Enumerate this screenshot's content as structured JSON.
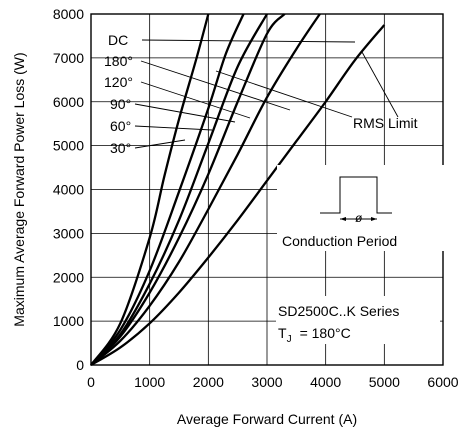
{
  "chart_data": {
    "type": "line",
    "title": "",
    "xlabel": "Average Forward Current (A)",
    "ylabel": "Maximum Average Forward Power Loss (W)",
    "xlim": [
      0,
      6000
    ],
    "ylim": [
      0,
      8000
    ],
    "xticks": [
      "0",
      "1000",
      "2000",
      "3000",
      "4000",
      "5000",
      "6000"
    ],
    "yticks": [
      "0",
      "1000",
      "2000",
      "3000",
      "4000",
      "5000",
      "6000",
      "7000",
      "8000"
    ],
    "grid": true,
    "series": [
      {
        "name": "30°",
        "x": [
          0,
          500,
          1000,
          1250,
          1500,
          1800,
          2000
        ],
        "y": [
          0,
          950,
          2900,
          4300,
          5600,
          7000,
          8000
        ]
      },
      {
        "name": "60°",
        "x": [
          0,
          500,
          1000,
          1500,
          2000,
          2300,
          2600
        ],
        "y": [
          0,
          800,
          2150,
          3950,
          5850,
          7100,
          8000
        ]
      },
      {
        "name": "90°",
        "x": [
          0,
          500,
          1000,
          1500,
          2000,
          2500,
          3000
        ],
        "y": [
          0,
          700,
          1850,
          3300,
          5050,
          6800,
          8000
        ]
      },
      {
        "name": "120°",
        "x": [
          0,
          500,
          1000,
          1500,
          2000,
          2500,
          3000,
          3300
        ],
        "y": [
          0,
          650,
          1650,
          2900,
          4350,
          6000,
          7550,
          8000
        ]
      },
      {
        "name": "180°",
        "x": [
          0,
          500,
          1000,
          1500,
          2000,
          2500,
          3000,
          3500,
          3900
        ],
        "y": [
          0,
          550,
          1350,
          2350,
          3550,
          4800,
          6100,
          7200,
          8000
        ]
      },
      {
        "name": "DC",
        "x": [
          0,
          500,
          1000,
          1500,
          2000,
          2500,
          3000,
          3500,
          4000,
          4500,
          5000
        ],
        "y": [
          0,
          400,
          950,
          1650,
          2450,
          3300,
          4200,
          5100,
          6000,
          6950,
          7750
        ]
      }
    ],
    "rms_limit_points": [
      [
        1800,
        7000
      ],
      [
        2300,
        7100
      ],
      [
        2500,
        6800
      ],
      [
        2800,
        7200
      ],
      [
        3000,
        7550
      ],
      [
        4500,
        6950
      ],
      [
        5000,
        7750
      ]
    ],
    "rms_limit_label": "RMS Limit",
    "legend_labels": [
      "DC",
      "180°",
      "120°",
      "90°",
      "60°",
      "30°"
    ],
    "inset_label": "Conduction Period",
    "inset_symbol": "ø",
    "series_note_line1": "SD2500C..K Series",
    "series_note_line2_prefix": "T",
    "series_note_line2_sub": "J",
    "series_note_line2_suffix": "= 180°C"
  }
}
